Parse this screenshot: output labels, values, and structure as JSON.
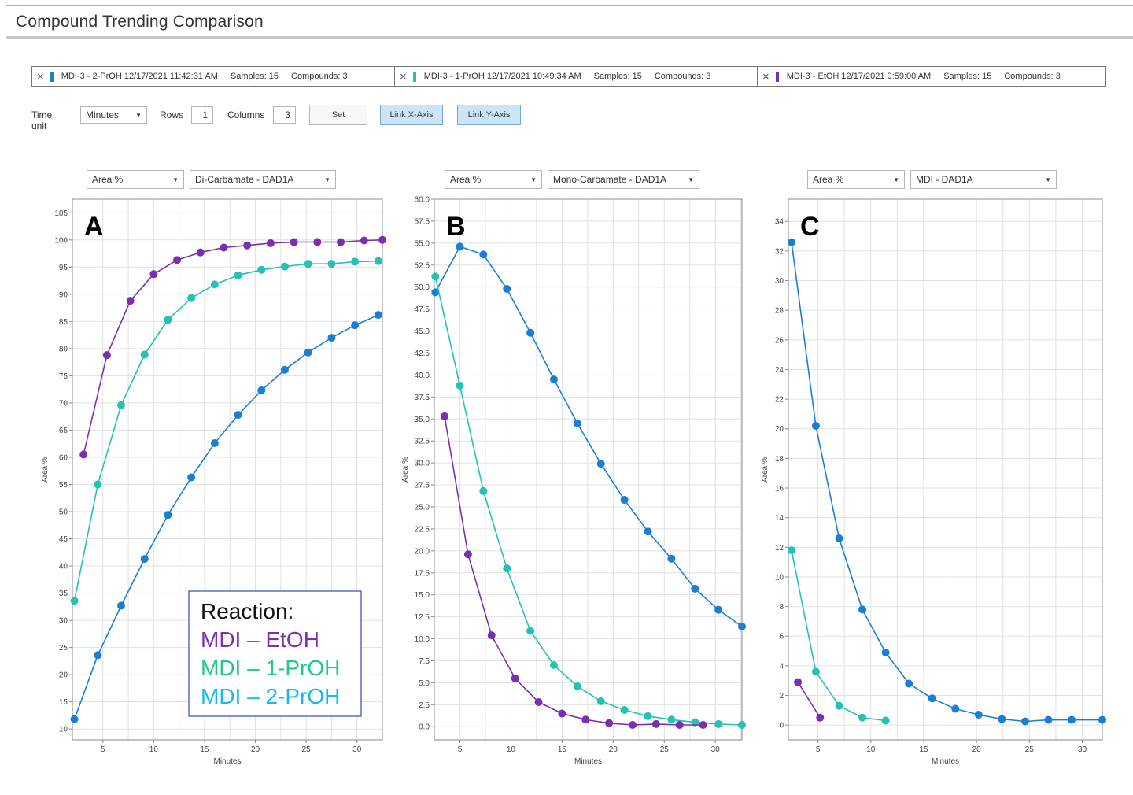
{
  "window": {
    "title": "Compound Trending Comparison"
  },
  "tabs": [
    {
      "close": "×",
      "name": "MDI-3 - 2-PrOH 12/17/2021 11:42:31 AM",
      "samples": "Samples: 15",
      "compounds": "Compounds: 3",
      "color": "#1a7fd4"
    },
    {
      "close": "×",
      "name": "MDI-3 - 1-PrOH 12/17/2021 10:49:34 AM",
      "samples": "Samples: 15",
      "compounds": "Compounds: 3",
      "color": "#26c1b5"
    },
    {
      "close": "×",
      "name": "MDI-3 - EtOH 12/17/2021 9:59:00 AM",
      "samples": "Samples: 15",
      "compounds": "Compounds: 3",
      "color": "#7a2fb0"
    }
  ],
  "controls": {
    "time_unit_label": "Time unit",
    "time_unit_value": "Minutes",
    "rows_label": "Rows",
    "rows_value": "1",
    "columns_label": "Columns",
    "columns_value": "3",
    "set_label": "Set",
    "link_x_label": "Link X-Axis",
    "link_y_label": "Link Y-Axis"
  },
  "colors": {
    "etoh": "#7a2fb0",
    "propoh1": "#26c1b5",
    "propoh2": "#1a7fd4",
    "accent": "#3a9fd0"
  },
  "legend": {
    "title": "Reaction:",
    "items": [
      {
        "label": "MDI – EtOH",
        "color": "#7a2fb0"
      },
      {
        "label": "MDI – 1-PrOH",
        "color": "#22c88a"
      },
      {
        "label": "MDI – 2-PrOH",
        "color": "#1ab8e8"
      }
    ]
  },
  "panels": [
    {
      "metric": "Area %",
      "compound": "Di-Carbamate - DAD1A",
      "letter": "A"
    },
    {
      "metric": "Area %",
      "compound": "Mono-Carbamate - DAD1A",
      "letter": "B"
    },
    {
      "metric": "Area %",
      "compound": "MDI - DAD1A",
      "letter": "C"
    }
  ],
  "chart_data": [
    {
      "type": "line",
      "panel_letter": "A",
      "xlabel": "Minutes",
      "ylabel": "Area %",
      "xlim": [
        2,
        32.5
      ],
      "ylim": [
        8,
        107.5
      ],
      "xticks": [
        "5",
        "10",
        "15",
        "20",
        "25",
        "30"
      ],
      "yticks": [
        "10",
        "15",
        "20",
        "25",
        "30",
        "35",
        "40",
        "45",
        "50",
        "55",
        "60",
        "65",
        "70",
        "75",
        "80",
        "85",
        "90",
        "95",
        "100",
        "105"
      ],
      "grid": true,
      "series": [
        {
          "name": "MDI – EtOH",
          "color": "#7a2fb0",
          "x": [
            3.1,
            5.4,
            7.7,
            10.0,
            12.3,
            14.6,
            16.9,
            19.2,
            21.5,
            23.8,
            26.1,
            28.4,
            30.7,
            32.5
          ],
          "y": [
            60.5,
            78.8,
            88.8,
            93.7,
            96.3,
            97.7,
            98.6,
            99.0,
            99.4,
            99.6,
            99.6,
            99.6,
            99.9,
            100.0
          ]
        },
        {
          "name": "MDI – 1-PrOH",
          "color": "#26c1b5",
          "x": [
            2.2,
            4.5,
            6.8,
            9.1,
            11.4,
            13.7,
            16.0,
            18.3,
            20.6,
            22.9,
            25.2,
            27.5,
            29.8,
            32.1
          ],
          "y": [
            33.6,
            55.0,
            69.6,
            78.9,
            85.3,
            89.3,
            91.8,
            93.5,
            94.5,
            95.1,
            95.6,
            95.6,
            96.0,
            96.1
          ]
        },
        {
          "name": "MDI – 2-PrOH",
          "color": "#1a7fd4",
          "x": [
            2.2,
            4.5,
            6.8,
            9.1,
            11.4,
            13.7,
            16.0,
            18.3,
            20.6,
            22.9,
            25.2,
            27.5,
            29.8,
            32.1
          ],
          "y": [
            11.8,
            23.6,
            32.7,
            41.3,
            49.4,
            56.3,
            62.6,
            67.8,
            72.3,
            76.1,
            79.3,
            82.0,
            84.3,
            86.2
          ]
        }
      ]
    },
    {
      "type": "line",
      "panel_letter": "B",
      "xlabel": "Minutes",
      "ylabel": "Area %",
      "xlim": [
        2.5,
        32.6
      ],
      "ylim": [
        -1.5,
        60.0
      ],
      "xticks": [
        "5",
        "10",
        "15",
        "20",
        "25",
        "30"
      ],
      "yticks": [
        "0.0",
        "2.5",
        "5.0",
        "7.5",
        "10.0",
        "12.5",
        "15.0",
        "17.5",
        "20.0",
        "22.5",
        "25.0",
        "27.5",
        "30.0",
        "32.5",
        "35.0",
        "37.5",
        "40.0",
        "42.5",
        "45.0",
        "47.5",
        "50.0",
        "52.5",
        "55.0",
        "57.5",
        "60.0"
      ],
      "grid": true,
      "series": [
        {
          "name": "MDI – 2-PrOH",
          "color": "#1a7fd4",
          "x": [
            2.6,
            5.0,
            7.3,
            9.6,
            11.9,
            14.2,
            16.5,
            18.8,
            21.1,
            23.4,
            25.7,
            28.0,
            30.3,
            32.6
          ],
          "y": [
            49.4,
            54.6,
            53.7,
            49.8,
            44.8,
            39.5,
            34.5,
            29.9,
            25.8,
            22.2,
            19.1,
            15.7,
            13.3,
            11.4
          ]
        },
        {
          "name": "MDI – 1-PrOH",
          "color": "#26c1b5",
          "x": [
            2.6,
            5.0,
            7.3,
            9.6,
            11.9,
            14.2,
            16.5,
            18.8,
            21.1,
            23.4,
            25.7,
            28.0,
            30.3,
            32.6
          ],
          "y": [
            51.2,
            38.8,
            26.8,
            18.0,
            10.9,
            7.0,
            4.6,
            2.9,
            1.9,
            1.2,
            0.8,
            0.5,
            0.3,
            0.2
          ]
        },
        {
          "name": "MDI – EtOH",
          "color": "#7a2fb0",
          "x": [
            3.5,
            5.8,
            8.1,
            10.4,
            12.7,
            15.0,
            17.3,
            19.6,
            21.9,
            24.2,
            26.5,
            28.8
          ],
          "y": [
            35.3,
            19.6,
            10.4,
            5.5,
            2.8,
            1.5,
            0.8,
            0.4,
            0.2,
            0.3,
            0.2,
            0.2
          ]
        }
      ]
    },
    {
      "type": "line",
      "panel_letter": "C",
      "xlabel": "Minutes",
      "ylabel": "Area %",
      "xlim": [
        2.2,
        31.9
      ],
      "ylim": [
        -1.0,
        35.5
      ],
      "xticks": [
        "5",
        "10",
        "15",
        "20",
        "25",
        "30"
      ],
      "yticks": [
        "0",
        "2",
        "4",
        "6",
        "8",
        "10",
        "12",
        "14",
        "16",
        "18",
        "20",
        "22",
        "24",
        "26",
        "28",
        "30",
        "32",
        "34"
      ],
      "grid": true,
      "series": [
        {
          "name": "MDI – 2-PrOH",
          "color": "#1a7fd4",
          "x": [
            2.5,
            4.8,
            7.0,
            9.2,
            11.4,
            13.6,
            15.8,
            18.0,
            20.2,
            22.4,
            24.6,
            26.8,
            29.0,
            31.9
          ],
          "y": [
            32.6,
            20.2,
            12.6,
            7.8,
            4.9,
            2.8,
            1.8,
            1.1,
            0.7,
            0.4,
            0.25,
            0.35,
            0.35,
            0.35
          ]
        },
        {
          "name": "MDI – 1-PrOH",
          "color": "#26c1b5",
          "x": [
            2.5,
            4.8,
            7.0,
            9.2,
            11.4
          ],
          "y": [
            11.8,
            3.6,
            1.3,
            0.5,
            0.3
          ]
        },
        {
          "name": "MDI – EtOH",
          "color": "#7a2fb0",
          "x": [
            3.1,
            5.2
          ],
          "y": [
            2.9,
            0.5
          ]
        }
      ]
    }
  ]
}
